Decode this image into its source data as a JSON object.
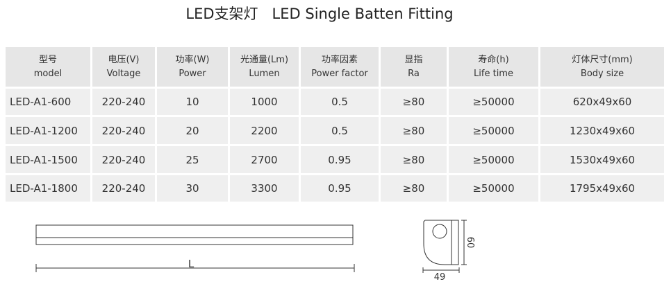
{
  "header": {
    "title": "LED支架灯   LED Single Batten Fitting"
  },
  "table": {
    "columns": [
      [
        "型号",
        "model"
      ],
      [
        "电压(V)",
        "Voltage"
      ],
      [
        "功率(W)",
        "Power"
      ],
      [
        "光通量(Lm)",
        "Lumen"
      ],
      [
        "功率因素",
        "Power factor"
      ],
      [
        "显指",
        "Ra"
      ],
      [
        "寿命(h)",
        "Life time"
      ],
      [
        "灯体尺寸(mm)",
        "Body size"
      ]
    ],
    "rows": [
      [
        "LED-A1-600",
        "220-240",
        "10",
        "1000",
        "0.5",
        "≥80",
        "≥50000",
        "620x49x60"
      ],
      [
        "LED-A1-1200",
        "220-240",
        "20",
        "2200",
        "0.5",
        "≥80",
        "≥50000",
        "1230x49x60"
      ],
      [
        "LED-A1-1500",
        "220-240",
        "25",
        "2700",
        "0.95",
        "≥80",
        "≥50000",
        "1530x49x60"
      ],
      [
        "LED-A1-1800",
        "220-240",
        "30",
        "3300",
        "0.95",
        "≥80",
        "≥50000",
        "1795x49x60"
      ]
    ]
  },
  "drawing": {
    "length_label": "L",
    "height_label": "60",
    "width_label": "49"
  }
}
